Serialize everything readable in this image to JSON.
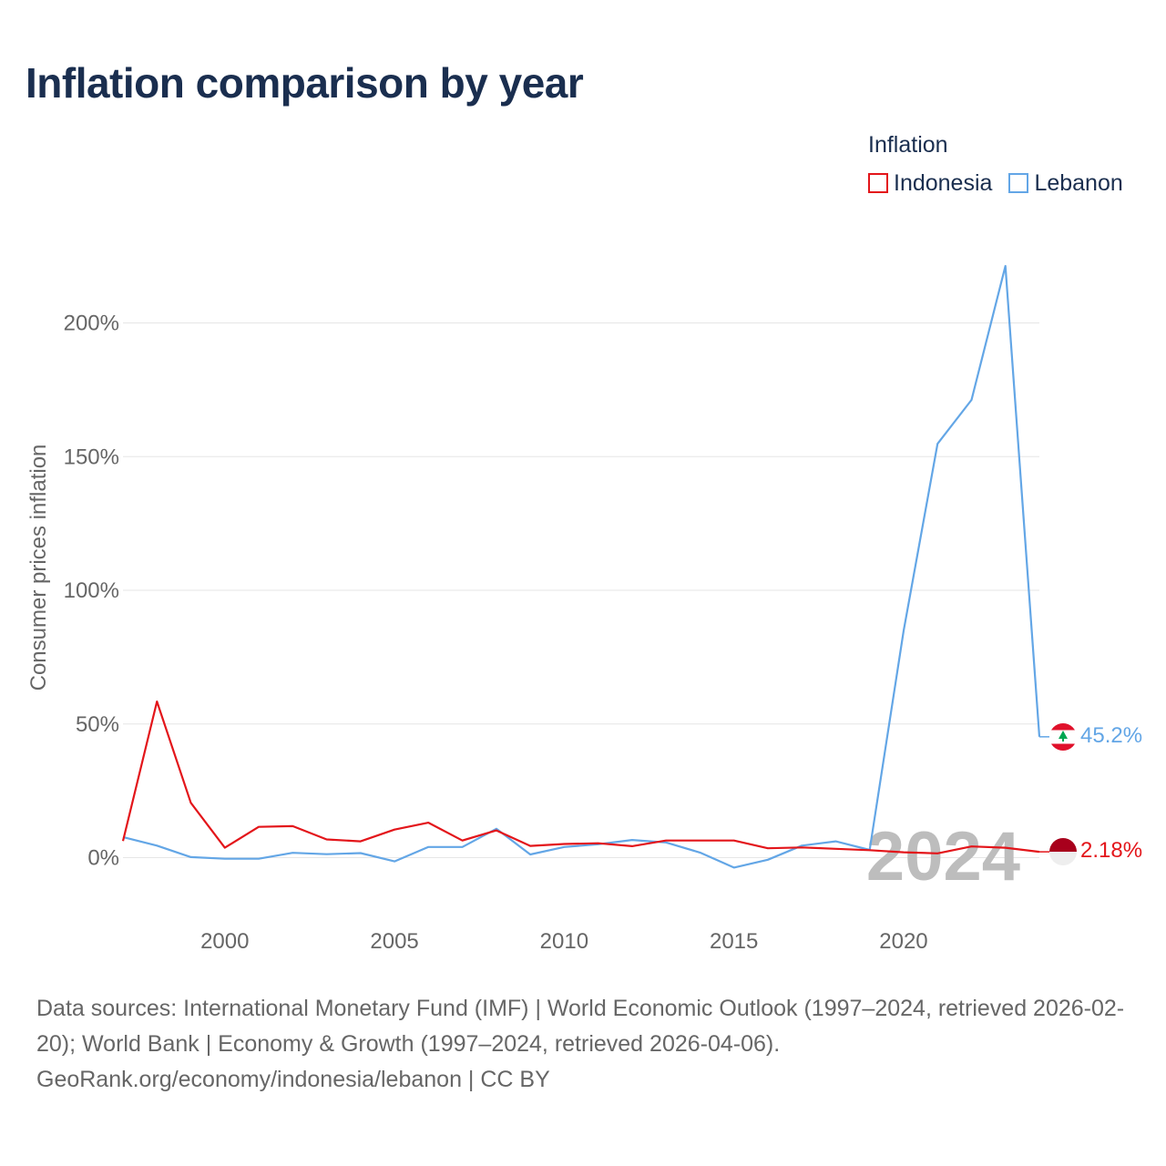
{
  "title": "Inflation comparison by year",
  "legend": {
    "title": "Inflation",
    "items": [
      {
        "name": "Indonesia",
        "color": "#e3151a"
      },
      {
        "name": "Lebanon",
        "color": "#63a6e6"
      }
    ]
  },
  "current_year": "2024",
  "end_labels": {
    "Indonesia": "2.18%",
    "Lebanon": "45.2%"
  },
  "footer": {
    "line1": "Data sources: International Monetary Fund (IMF) | World Economic Outlook (1997–2024, retrieved 2026-02-20); World Bank | Economy & Growth (1997–2024, retrieved 2026-04-06).",
    "line2": "GeoRank.org/economy/indonesia/lebanon | CC BY"
  },
  "colors": {
    "title": "#1a2e4f",
    "indonesia": "#e3151a",
    "lebanon": "#63a6e6",
    "grid": "#e6e6e6",
    "axis_text": "#666666"
  },
  "chart_data": {
    "type": "line",
    "title": "Inflation comparison by year",
    "xlabel": "",
    "ylabel": "Consumer prices inflation",
    "xlim": [
      1997,
      2024
    ],
    "ylim": [
      -20,
      230
    ],
    "x_ticks": [
      2000,
      2005,
      2010,
      2015,
      2020
    ],
    "y_ticks": [
      0,
      50,
      100,
      150,
      200
    ],
    "y_tick_labels": [
      "0%",
      "50%",
      "100%",
      "150%",
      "200%"
    ],
    "grid": true,
    "legend_position": "top-right",
    "x": [
      1997,
      1998,
      1999,
      2000,
      2001,
      2002,
      2003,
      2004,
      2005,
      2006,
      2007,
      2008,
      2009,
      2010,
      2011,
      2012,
      2013,
      2014,
      2015,
      2016,
      2017,
      2018,
      2019,
      2020,
      2021,
      2022,
      2023,
      2024
    ],
    "series": [
      {
        "name": "Indonesia",
        "color": "#e3151a",
        "values": [
          6.2,
          58.4,
          20.5,
          3.7,
          11.5,
          11.8,
          6.8,
          6.1,
          10.5,
          13.1,
          6.4,
          10.2,
          4.4,
          5.1,
          5.4,
          4.3,
          6.4,
          6.4,
          6.4,
          3.5,
          3.8,
          3.3,
          2.8,
          2.0,
          1.6,
          4.2,
          3.7,
          2.18
        ]
      },
      {
        "name": "Lebanon",
        "color": "#63a6e6",
        "values": [
          7.7,
          4.5,
          0.2,
          -0.4,
          -0.4,
          1.8,
          1.3,
          1.7,
          -1.4,
          4.0,
          4.0,
          10.8,
          1.2,
          4.0,
          5.0,
          6.6,
          5.7,
          1.9,
          -3.7,
          -0.8,
          4.5,
          6.1,
          2.9,
          84.9,
          154.8,
          171.2,
          221.3,
          45.2
        ]
      }
    ]
  }
}
